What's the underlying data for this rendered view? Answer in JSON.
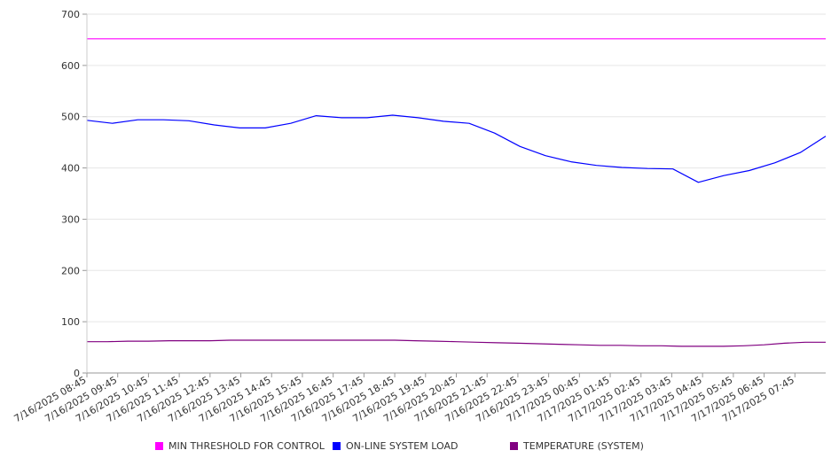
{
  "chart_data": {
    "type": "line",
    "ylim": [
      0,
      700
    ],
    "y_ticks": [
      0,
      100,
      200,
      300,
      400,
      500,
      600,
      700
    ],
    "grid": true,
    "legend_position": "bottom",
    "x_tick_labels": [
      "7/16/2025 08:45",
      "7/16/2025 09:45",
      "7/16/2025 10:45",
      "7/16/2025 11:45",
      "7/16/2025 12:45",
      "7/16/2025 13:45",
      "7/16/2025 14:45",
      "7/16/2025 15:45",
      "7/16/2025 16:45",
      "7/16/2025 17:45",
      "7/16/2025 18:45",
      "7/16/2025 19:45",
      "7/16/2025 20:45",
      "7/16/2025 21:45",
      "7/16/2025 22:45",
      "7/16/2025 23:45",
      "7/17/2025 00:45",
      "7/17/2025 01:45",
      "7/17/2025 02:45",
      "7/17/2025 03:45",
      "7/17/2025 04:45",
      "7/17/2025 05:45",
      "7/17/2025 06:45",
      "7/17/2025 07:45"
    ],
    "series": [
      {
        "name": "MIN THRESHOLD FOR CONTROL",
        "color": "#ff00ff",
        "values": [
          652,
          652,
          652,
          652,
          652,
          652,
          652,
          652,
          652,
          652,
          652,
          652,
          652,
          652,
          652,
          652,
          652,
          652,
          652,
          652,
          652,
          652,
          652,
          652,
          652
        ]
      },
      {
        "name": "ON-LINE SYSTEM LOAD",
        "color": "#0000ff",
        "values": [
          493,
          487,
          494,
          494,
          492,
          484,
          478,
          478,
          487,
          502,
          498,
          498,
          503,
          498,
          491,
          487,
          468,
          442,
          424,
          412,
          405,
          401,
          399,
          398,
          372,
          385,
          395,
          410,
          430,
          462
        ]
      },
      {
        "name": "TEMPERATURE (SYSTEM)",
        "color": "#800080",
        "values": [
          61,
          61,
          62,
          62,
          63,
          63,
          63,
          64,
          64,
          64,
          64,
          64,
          64,
          64,
          64,
          64,
          63,
          62,
          61,
          60,
          59,
          58,
          57,
          56,
          55,
          54,
          54,
          53,
          53,
          52,
          52,
          52,
          53,
          55,
          58,
          60,
          60
        ]
      }
    ]
  }
}
